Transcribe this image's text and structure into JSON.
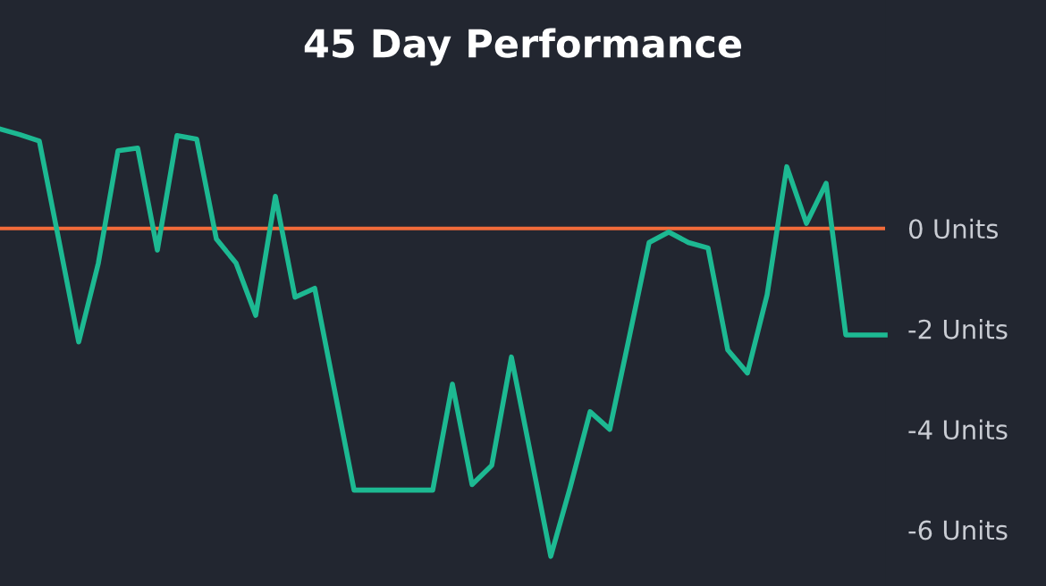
{
  "chart_data": {
    "type": "line",
    "title": "45 Day Performance",
    "categories": [
      null,
      null,
      null,
      null,
      null,
      null,
      null,
      null,
      null,
      null,
      null,
      null,
      null,
      null,
      null,
      null,
      null,
      null,
      null,
      null,
      null,
      null,
      null,
      null,
      null,
      null,
      null,
      null,
      null,
      null,
      null,
      null,
      null,
      null,
      null,
      null,
      null,
      null,
      null,
      null,
      null,
      null,
      null,
      null,
      null,
      null
    ],
    "series": [
      {
        "color": "#1db992",
        "values": [
          1.98,
          1.87,
          1.74,
          -0.25,
          -2.26,
          -0.69,
          1.55,
          1.6,
          -0.43,
          1.85,
          1.78,
          -0.21,
          -0.69,
          -1.73,
          0.64,
          -1.37,
          -1.19,
          -3.2,
          -5.21,
          -5.21,
          -5.21,
          -5.21,
          -5.21,
          -3.1,
          -5.1,
          -4.72,
          -2.56,
          -4.54,
          -6.53,
          -5.14,
          -3.65,
          -4.0,
          -2.15,
          -0.28,
          -0.07,
          -0.28,
          -0.39,
          -2.42,
          -2.88,
          -1.32,
          1.23,
          0.1,
          0.9,
          -2.12,
          -2.12,
          -2.12
        ]
      }
    ],
    "ylim": [
      -7.12,
      4.55
    ],
    "yticks": [
      {
        "value": 0,
        "label": "0 Units"
      },
      {
        "value": -2,
        "label": "-2 Units"
      },
      {
        "value": -4,
        "label": "-4 Units"
      },
      {
        "value": -6,
        "label": "-6 Units"
      }
    ],
    "ref_lines": [
      {
        "axis": "y",
        "value": 0,
        "color": "#f26b3a"
      }
    ],
    "grid": false,
    "legend": false,
    "marker": "none",
    "line_style": "solid"
  }
}
